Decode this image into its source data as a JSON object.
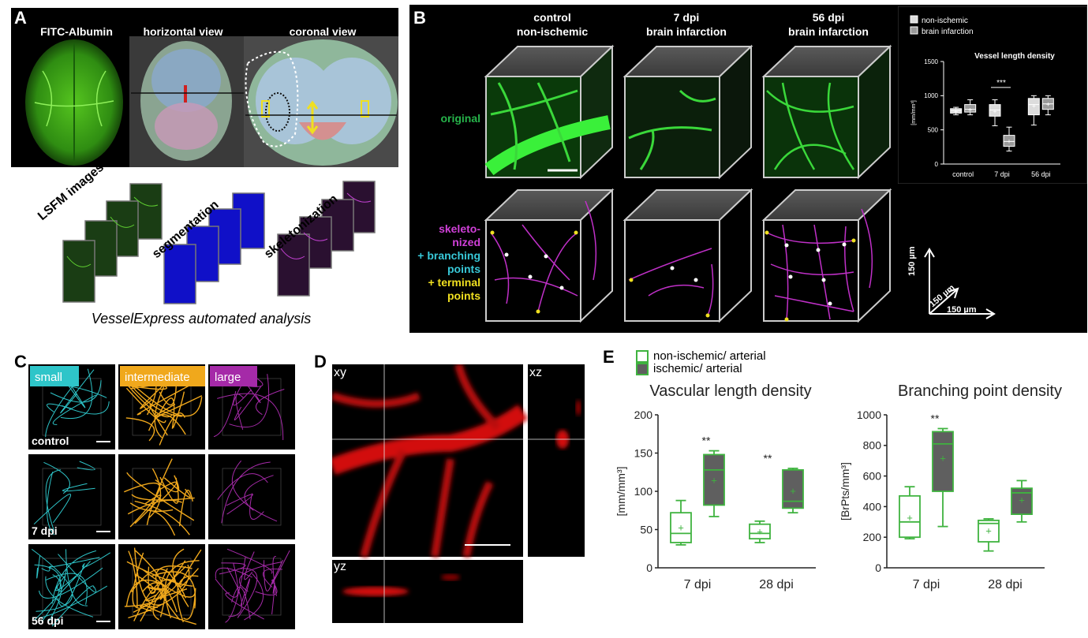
{
  "panelA": {
    "letter": "A",
    "titles": [
      "FITC-Albumin",
      "horizontal view",
      "coronal view"
    ],
    "stack_labels": [
      "LSFM images",
      "segmentation",
      "skeletonization"
    ],
    "caption": "VesselExpress automated analysis"
  },
  "panelB": {
    "letter": "B",
    "col_titles": [
      [
        "control",
        "non-ischemic"
      ],
      [
        "7 dpi",
        "brain infarction"
      ],
      [
        "56 dpi",
        "brain infarction"
      ]
    ],
    "row_original": "original",
    "row_skel": {
      "line1": "skeleto-",
      "line2": "nized",
      "line3": "+ branching",
      "line4": "points",
      "line5": "+ terminal",
      "line6": "points"
    },
    "scale": {
      "z": "150 µm",
      "diag": "150 µm",
      "x": "150 µm"
    }
  },
  "panelC": {
    "letter": "C",
    "cols": [
      "small",
      "intermediate",
      "large"
    ],
    "rows": [
      "control",
      "7 dpi",
      "56 dpi"
    ],
    "colors": {
      "small": "#2ec5c9",
      "intermediate": "#f0a81c",
      "large": "#a52aa8"
    }
  },
  "panelD": {
    "letter": "D",
    "views": {
      "xy": "xy",
      "xz": "xz",
      "yz": "yz"
    }
  },
  "panelE": {
    "letter": "E",
    "legend": [
      "non-ischemic/ arterial",
      "ischemic/ arterial"
    ]
  },
  "chart_data": [
    {
      "type": "box",
      "title": "Vessel length density",
      "ylabel": "[mm/mm³]",
      "ylim": [
        0,
        1500
      ],
      "yticks": [
        0,
        500,
        1000,
        1500
      ],
      "categories": [
        "control",
        "7 dpi",
        "56 dpi"
      ],
      "legend": [
        "non-ischemic",
        "brain infarction"
      ],
      "series": [
        {
          "name": "non-ischemic",
          "color": "#dcdcdc",
          "boxes": [
            {
              "min": 720,
              "q1": 745,
              "median": 780,
              "q3": 810,
              "max": 830,
              "mean": 780
            },
            {
              "min": 560,
              "q1": 700,
              "median": 790,
              "q3": 870,
              "max": 940,
              "mean": 780
            },
            {
              "min": 570,
              "q1": 720,
              "median": 870,
              "q3": 960,
              "max": 1000,
              "mean": 860
            }
          ]
        },
        {
          "name": "brain infarction",
          "color": "#9a9a9a",
          "boxes": [
            {
              "min": 720,
              "q1": 760,
              "median": 800,
              "q3": 870,
              "max": 940,
              "mean": 800
            },
            {
              "min": 190,
              "q1": 260,
              "median": 330,
              "q3": 420,
              "max": 540,
              "mean": 340
            },
            {
              "min": 720,
              "q1": 800,
              "median": 880,
              "q3": 960,
              "max": 1000,
              "mean": 880
            }
          ]
        }
      ],
      "annotations": [
        "***"
      ]
    },
    {
      "type": "box",
      "title": "Vascular length density",
      "ylabel": "[mm/mm³]",
      "ylim": [
        0,
        200
      ],
      "yticks": [
        0,
        50,
        100,
        150,
        200
      ],
      "categories": [
        "7 dpi",
        "28 dpi"
      ],
      "series": [
        {
          "name": "non-ischemic/ arterial",
          "color": "#ffffff",
          "stroke": "#3fb33f",
          "boxes": [
            {
              "min": 30,
              "q1": 33,
              "median": 45,
              "q3": 72,
              "max": 88,
              "mean": 52
            },
            {
              "min": 33,
              "q1": 38,
              "median": 45,
              "q3": 57,
              "max": 61,
              "mean": 47
            }
          ]
        },
        {
          "name": "ischemic/ arterial",
          "color": "#5f5f5f",
          "stroke": "#3fb33f",
          "boxes": [
            {
              "min": 67,
              "q1": 82,
              "median": 128,
              "q3": 148,
              "max": 153,
              "mean": 114
            },
            {
              "min": 72,
              "q1": 78,
              "median": 87,
              "q3": 128,
              "max": 130,
              "mean": 100
            }
          ]
        }
      ],
      "annotations": [
        "**",
        "**"
      ]
    },
    {
      "type": "box",
      "title": "Branching point density",
      "ylabel": "[BrPts/mm³]",
      "ylim": [
        0,
        1000
      ],
      "yticks": [
        0,
        200,
        400,
        600,
        800,
        1000
      ],
      "categories": [
        "7 dpi",
        "28 dpi"
      ],
      "series": [
        {
          "name": "non-ischemic/ arterial",
          "color": "#ffffff",
          "stroke": "#3fb33f",
          "boxes": [
            {
              "min": 190,
              "q1": 200,
              "median": 300,
              "q3": 470,
              "max": 530,
              "mean": 325
            },
            {
              "min": 110,
              "q1": 170,
              "median": 290,
              "q3": 310,
              "max": 320,
              "mean": 240
            }
          ]
        },
        {
          "name": "ischemic/ arterial",
          "color": "#5f5f5f",
          "stroke": "#3fb33f",
          "boxes": [
            {
              "min": 270,
              "q1": 500,
              "median": 810,
              "q3": 890,
              "max": 910,
              "mean": 715
            },
            {
              "min": 300,
              "q1": 350,
              "median": 490,
              "q3": 520,
              "max": 570,
              "mean": 440
            }
          ]
        }
      ],
      "annotations": [
        "**"
      ]
    }
  ]
}
